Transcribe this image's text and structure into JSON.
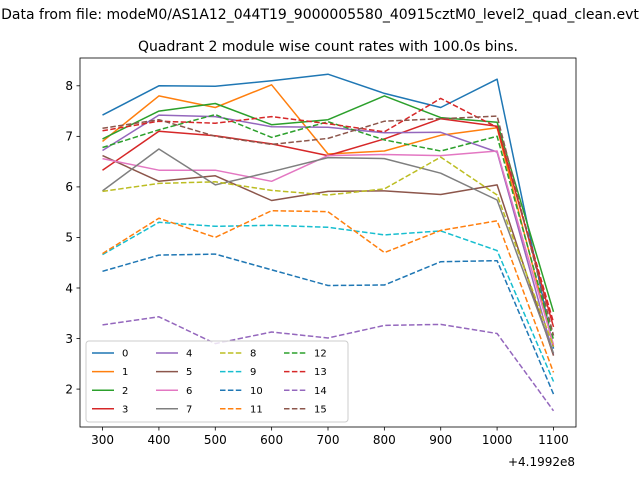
{
  "suptitle": "Data from file: modeM0/AS1A12_044T19_9000005580_40915cztM0_level2_quad_clean.evt",
  "chart_data": {
    "type": "line",
    "title": "Quadrant 2 module wise count rates with 100.0s bins.",
    "xlabel": "",
    "ylabel": "",
    "x_offset_label": "+4.1992e8",
    "x": [
      300,
      400,
      500,
      600,
      700,
      800,
      900,
      1000,
      1100
    ],
    "xlim": [
      260,
      1140
    ],
    "ylim": [
      1.25,
      8.55
    ],
    "xticks": [
      300,
      400,
      500,
      600,
      700,
      800,
      900,
      1000,
      1100
    ],
    "yticks": [
      2,
      3,
      4,
      5,
      6,
      7,
      8
    ],
    "grid": false,
    "legend": {
      "position": "lower-left",
      "columns": 4
    },
    "series": [
      {
        "name": "0",
        "color": "#1f77b4",
        "dash": "solid",
        "values": [
          7.42,
          8.0,
          7.99,
          8.1,
          8.23,
          7.85,
          7.57,
          8.13,
          2.8
        ]
      },
      {
        "name": "1",
        "color": "#ff7f0e",
        "dash": "solid",
        "values": [
          6.9,
          7.8,
          7.57,
          8.02,
          6.65,
          6.71,
          7.02,
          7.17,
          2.84
        ]
      },
      {
        "name": "2",
        "color": "#2ca02c",
        "dash": "solid",
        "values": [
          6.95,
          7.5,
          7.65,
          7.23,
          7.33,
          7.8,
          7.37,
          7.28,
          3.53
        ]
      },
      {
        "name": "3",
        "color": "#d62728",
        "dash": "solid",
        "values": [
          6.33,
          7.1,
          7.01,
          6.85,
          6.62,
          6.95,
          7.35,
          7.2,
          3.23
        ]
      },
      {
        "name": "4",
        "color": "#9467bd",
        "dash": "solid",
        "values": [
          6.72,
          7.42,
          7.39,
          7.19,
          7.18,
          7.07,
          7.08,
          6.69,
          2.68
        ]
      },
      {
        "name": "5",
        "color": "#8c564b",
        "dash": "solid",
        "values": [
          6.62,
          6.11,
          6.22,
          5.73,
          5.91,
          5.92,
          5.85,
          6.04,
          2.66
        ]
      },
      {
        "name": "6",
        "color": "#e377c2",
        "dash": "solid",
        "values": [
          6.56,
          6.33,
          6.33,
          6.11,
          6.62,
          6.64,
          6.62,
          6.71,
          2.88
        ]
      },
      {
        "name": "7",
        "color": "#7f7f7f",
        "dash": "solid",
        "values": [
          5.92,
          6.75,
          6.04,
          6.3,
          6.58,
          6.56,
          6.27,
          5.74,
          2.71
        ]
      },
      {
        "name": "8",
        "color": "#bcbd22",
        "dash": "dashed",
        "values": [
          5.91,
          6.07,
          6.1,
          5.93,
          5.84,
          5.96,
          6.59,
          5.84,
          2.84
        ]
      },
      {
        "name": "9",
        "color": "#17becf",
        "dash": "dashed",
        "values": [
          4.66,
          5.3,
          5.22,
          5.24,
          5.2,
          5.05,
          5.13,
          4.74,
          2.15
        ]
      },
      {
        "name": "10",
        "color": "#1f77b4",
        "dash": "dashed",
        "values": [
          4.33,
          4.65,
          4.67,
          4.36,
          4.05,
          4.06,
          4.52,
          4.54,
          1.9
        ]
      },
      {
        "name": "11",
        "color": "#ff7f0e",
        "dash": "dashed",
        "values": [
          4.68,
          5.38,
          5.0,
          5.53,
          5.51,
          4.7,
          5.14,
          5.33,
          2.33
        ]
      },
      {
        "name": "12",
        "color": "#2ca02c",
        "dash": "dashed",
        "values": [
          6.78,
          7.13,
          7.43,
          6.98,
          7.29,
          6.93,
          6.71,
          7.0,
          2.98
        ]
      },
      {
        "name": "13",
        "color": "#d62728",
        "dash": "dashed",
        "values": [
          7.11,
          7.3,
          7.26,
          7.39,
          7.25,
          7.09,
          7.75,
          7.18,
          3.32
        ]
      },
      {
        "name": "14",
        "color": "#9467bd",
        "dash": "dashed",
        "values": [
          3.27,
          3.43,
          2.9,
          3.13,
          3.01,
          3.26,
          3.28,
          3.1,
          1.57
        ]
      },
      {
        "name": "15",
        "color": "#8c564b",
        "dash": "dashed",
        "values": [
          7.16,
          7.33,
          7.0,
          6.84,
          6.96,
          7.3,
          7.35,
          7.4,
          3.06
        ]
      }
    ]
  }
}
